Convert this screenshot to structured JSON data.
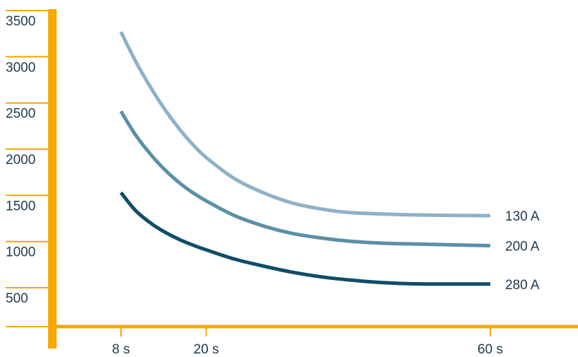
{
  "chart_data": {
    "type": "line",
    "title": "",
    "xlabel": "",
    "ylabel": "",
    "x_ticks": [
      {
        "value": 8,
        "label": "8 s"
      },
      {
        "value": 20,
        "label": "20 s"
      },
      {
        "value": 60,
        "label": "60 s"
      }
    ],
    "y_ticks": [
      {
        "value": 500,
        "label": "500"
      },
      {
        "value": 1000,
        "label": "1000"
      },
      {
        "value": 1500,
        "label": "1500"
      },
      {
        "value": 2000,
        "label": "2000"
      },
      {
        "value": 2500,
        "label": "2500"
      },
      {
        "value": 3000,
        "label": "3000"
      },
      {
        "value": 3500,
        "label": "3500"
      }
    ],
    "xlim": [
      0,
      70
    ],
    "ylim": [
      0,
      3600
    ],
    "grid": false,
    "legend": "none",
    "series": [
      {
        "label": "130 A",
        "color": "#8fb1c8",
        "points": [
          [
            8,
            3270
          ],
          [
            10,
            2960
          ],
          [
            12,
            2690
          ],
          [
            14,
            2450
          ],
          [
            16,
            2240
          ],
          [
            18,
            2060
          ],
          [
            20,
            1910
          ],
          [
            24,
            1680
          ],
          [
            28,
            1530
          ],
          [
            32,
            1420
          ],
          [
            36,
            1355
          ],
          [
            40,
            1315
          ],
          [
            44,
            1300
          ],
          [
            48,
            1290
          ],
          [
            52,
            1285
          ],
          [
            56,
            1282
          ],
          [
            60,
            1280
          ]
        ]
      },
      {
        "label": "200 A",
        "color": "#5b8fa8",
        "points": [
          [
            8,
            2410
          ],
          [
            10,
            2160
          ],
          [
            12,
            1960
          ],
          [
            14,
            1790
          ],
          [
            16,
            1650
          ],
          [
            18,
            1535
          ],
          [
            20,
            1440
          ],
          [
            24,
            1280
          ],
          [
            28,
            1170
          ],
          [
            32,
            1090
          ],
          [
            36,
            1040
          ],
          [
            40,
            1005
          ],
          [
            44,
            985
          ],
          [
            48,
            975
          ],
          [
            52,
            968
          ],
          [
            56,
            962
          ],
          [
            60,
            955
          ]
        ]
      },
      {
        "label": "280 A",
        "color": "#0f4d6a",
        "points": [
          [
            8,
            1530
          ],
          [
            10,
            1340
          ],
          [
            12,
            1210
          ],
          [
            14,
            1110
          ],
          [
            16,
            1030
          ],
          [
            18,
            965
          ],
          [
            20,
            910
          ],
          [
            24,
            810
          ],
          [
            28,
            735
          ],
          [
            32,
            670
          ],
          [
            36,
            620
          ],
          [
            40,
            585
          ],
          [
            44,
            560
          ],
          [
            48,
            545
          ],
          [
            52,
            540
          ],
          [
            56,
            540
          ],
          [
            60,
            540
          ]
        ]
      }
    ]
  },
  "style": {
    "axis_color": "#f5a800",
    "text_color": "#1e3a4c"
  }
}
